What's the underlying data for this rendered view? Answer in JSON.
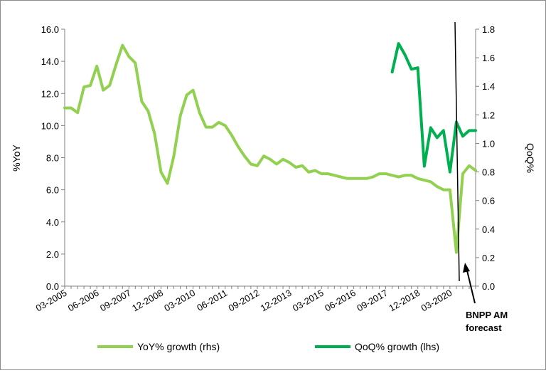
{
  "chart_data": {
    "type": "line",
    "title": "",
    "ylabel_left": "%YoY",
    "ylabel_right": "QoQ%",
    "ylim_left": [
      0,
      16
    ],
    "ylim_right": [
      0,
      1.8
    ],
    "y_ticks_left": [
      "0.0",
      "2.0",
      "4.0",
      "6.0",
      "8.0",
      "10.0",
      "12.0",
      "14.0",
      "16.0"
    ],
    "y_ticks_right": [
      "0.0",
      "0.2",
      "0.4",
      "0.6",
      "0.8",
      "1.0",
      "1.2",
      "1.4",
      "1.6",
      "1.8"
    ],
    "x_tick_labels": [
      "03-2005",
      "06-2006",
      "09-2007",
      "12-2008",
      "03-2010",
      "06-2011",
      "09-2012",
      "12-2013",
      "03-2015",
      "06-2016",
      "09-2017",
      "12-2018",
      "03-2020"
    ],
    "x_range_quarters": [
      0,
      64
    ],
    "grid": false,
    "legend_position": "bottom",
    "colors": {
      "yoy": "#92d050",
      "qoq": "#00b050",
      "divider": "#000000"
    },
    "series": [
      {
        "name": "YoY% growth (rhs)",
        "axis": "left",
        "x": [
          "03-2005",
          "06-2005",
          "09-2005",
          "12-2005",
          "03-2006",
          "06-2006",
          "09-2006",
          "12-2006",
          "03-2007",
          "06-2007",
          "09-2007",
          "12-2007",
          "03-2008",
          "06-2008",
          "09-2008",
          "12-2008",
          "03-2009",
          "06-2009",
          "09-2009",
          "12-2009",
          "03-2010",
          "06-2010",
          "09-2010",
          "12-2010",
          "03-2011",
          "06-2011",
          "09-2011",
          "12-2011",
          "03-2012",
          "06-2012",
          "09-2012",
          "12-2012",
          "03-2013",
          "06-2013",
          "09-2013",
          "12-2013",
          "03-2014",
          "06-2014",
          "09-2014",
          "12-2014",
          "03-2015",
          "06-2015",
          "09-2015",
          "12-2015",
          "03-2016",
          "06-2016",
          "09-2016",
          "12-2016",
          "03-2017",
          "06-2017",
          "09-2017",
          "12-2017",
          "03-2018",
          "06-2018",
          "09-2018",
          "12-2018",
          "03-2019",
          "06-2019",
          "09-2019",
          "12-2019",
          "03-2020",
          "06-2020",
          "09-2020",
          "12-2020",
          "03-2021"
        ],
        "values": [
          11.1,
          11.1,
          10.8,
          12.4,
          12.5,
          13.7,
          12.2,
          12.5,
          13.8,
          15.0,
          14.3,
          13.9,
          11.5,
          10.9,
          9.5,
          7.1,
          6.4,
          8.1,
          10.6,
          11.9,
          12.2,
          10.8,
          9.9,
          9.9,
          10.2,
          10.0,
          9.4,
          8.7,
          8.1,
          7.6,
          7.5,
          8.1,
          7.9,
          7.6,
          7.9,
          7.7,
          7.4,
          7.5,
          7.1,
          7.2,
          7.0,
          7.0,
          6.9,
          6.8,
          6.7,
          6.7,
          6.7,
          6.7,
          6.8,
          7.0,
          7.0,
          6.9,
          6.8,
          6.9,
          6.9,
          6.7,
          6.6,
          6.5,
          6.2,
          6.0,
          6.0,
          2.1,
          7.0,
          7.5,
          7.2
        ]
      },
      {
        "name": "QoQ% growth (lhs)",
        "axis": "right",
        "x": [
          "12-2017",
          "03-2018",
          "06-2018",
          "09-2018",
          "12-2018",
          "03-2019",
          "06-2019",
          "09-2019",
          "12-2019",
          "03-2020",
          "06-2020",
          "09-2020",
          "12-2020",
          "03-2021"
        ],
        "values": [
          1.5,
          1.7,
          1.62,
          1.52,
          1.53,
          0.84,
          1.11,
          1.04,
          1.09,
          0.8,
          1.15,
          1.05,
          1.09,
          1.09
        ]
      }
    ],
    "annotation": "BNPP AM\nforecast"
  }
}
